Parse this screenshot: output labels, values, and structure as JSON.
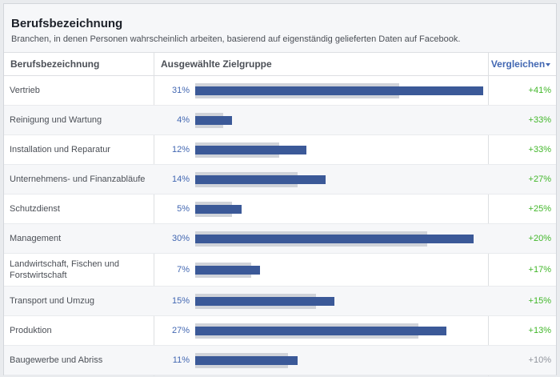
{
  "header": {
    "title": "Berufsbezeichnung",
    "subtitle": "Branchen, in denen Personen wahrscheinlich arbeiten, basierend auf eigenständig gelieferten Daten auf Facebook."
  },
  "columns": {
    "occupation": "Berufsbezeichnung",
    "audience": "Ausgewählte Zielgruppe",
    "compare": "Vergleichen"
  },
  "rows": [
    {
      "label": "Vertrieb",
      "percent": "31%",
      "audience_share": 0.31,
      "baseline_share": 0.22,
      "compare": "+41%",
      "compare_status": "positive"
    },
    {
      "label": "Reinigung und Wartung",
      "percent": "4%",
      "audience_share": 0.04,
      "baseline_share": 0.03,
      "compare": "+33%",
      "compare_status": "positive"
    },
    {
      "label": "Installation und Reparatur",
      "percent": "12%",
      "audience_share": 0.12,
      "baseline_share": 0.09,
      "compare": "+33%",
      "compare_status": "positive"
    },
    {
      "label": "Unternehmens- und Finanzabläufe",
      "percent": "14%",
      "audience_share": 0.14,
      "baseline_share": 0.11,
      "compare": "+27%",
      "compare_status": "positive"
    },
    {
      "label": "Schutzdienst",
      "percent": "5%",
      "audience_share": 0.05,
      "baseline_share": 0.04,
      "compare": "+25%",
      "compare_status": "positive"
    },
    {
      "label": "Management",
      "percent": "30%",
      "audience_share": 0.3,
      "baseline_share": 0.25,
      "compare": "+20%",
      "compare_status": "positive"
    },
    {
      "label": "Landwirtschaft, Fischen und Forstwirtschaft",
      "percent": "7%",
      "audience_share": 0.07,
      "baseline_share": 0.06,
      "compare": "+17%",
      "compare_status": "positive"
    },
    {
      "label": "Transport und Umzug",
      "percent": "15%",
      "audience_share": 0.15,
      "baseline_share": 0.13,
      "compare": "+15%",
      "compare_status": "positive"
    },
    {
      "label": "Produktion",
      "percent": "27%",
      "audience_share": 0.27,
      "baseline_share": 0.24,
      "compare": "+13%",
      "compare_status": "positive"
    },
    {
      "label": "Baugewerbe und Abriss",
      "percent": "11%",
      "audience_share": 0.11,
      "baseline_share": 0.1,
      "compare": "+10%",
      "compare_status": "neutral"
    }
  ],
  "scale_max_share": 0.31,
  "colors": {
    "audience_bar": "#3b5998",
    "baseline_bar": "#d0d3d9",
    "positive": "#42b72a",
    "neutral": "#90949c",
    "link": "#4267b2"
  }
}
